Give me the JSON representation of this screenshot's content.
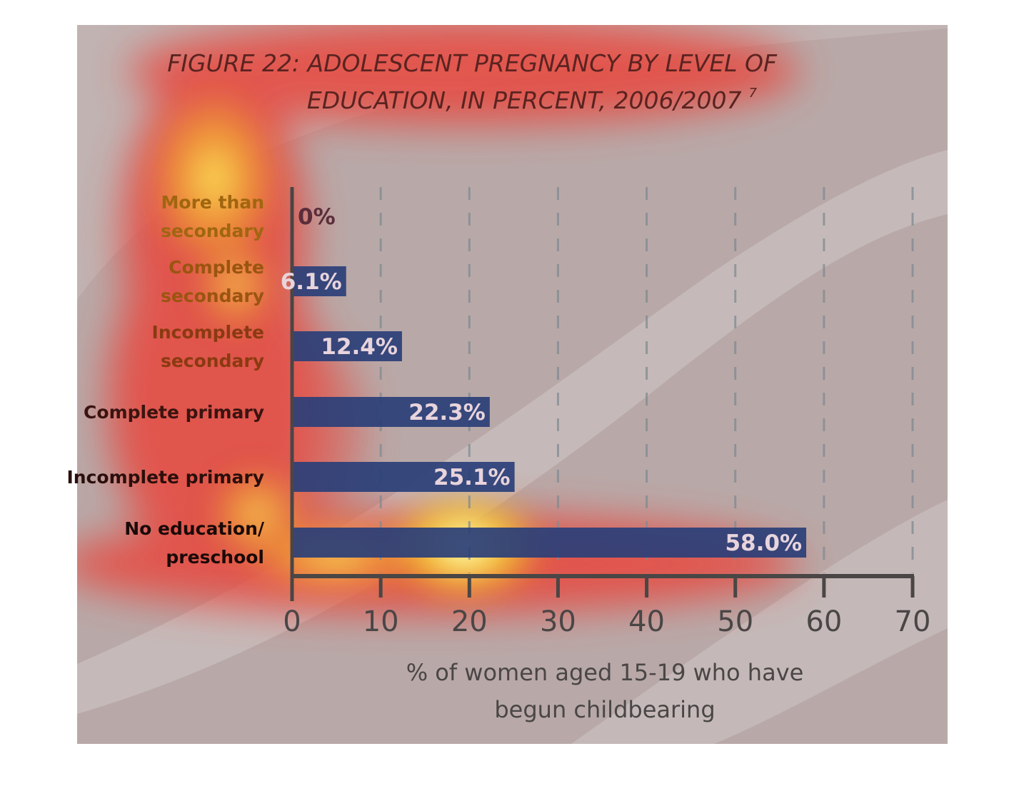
{
  "chart_data": {
    "type": "bar",
    "orientation": "horizontal",
    "title_lines": [
      "FIGURE 22: ADOLESCENT PREGNANCY BY LEVEL OF",
      "EDUCATION, IN PERCENT, 2006/2007"
    ],
    "title_footnote": "7",
    "categories": [
      [
        "More than",
        "secondary"
      ],
      [
        "Complete",
        "secondary"
      ],
      [
        "Incomplete",
        "secondary"
      ],
      [
        "Complete primary"
      ],
      [
        "Incomplete primary"
      ],
      [
        "No education/",
        "preschool"
      ]
    ],
    "values": [
      0,
      6.1,
      12.4,
      22.3,
      25.1,
      58.0
    ],
    "data_labels": [
      "0%",
      "6.1%",
      "12.4%",
      "22.3%",
      "25.1%",
      "58.0%"
    ],
    "x_ticks": [
      0,
      10,
      20,
      30,
      40,
      50,
      60,
      70
    ],
    "xlim": [
      0,
      70
    ],
    "xlabel_lines": [
      "% of women aged 15-19 who have",
      "begun childbearing"
    ],
    "grid": "vertical dashed",
    "colors": {
      "bar": "#2a3f78",
      "background": "#b8a9a8",
      "axis": "#4a4646",
      "title": "#5a2320",
      "category_text": "#3a1a14",
      "data_label_text": "#e8d4dc"
    }
  }
}
